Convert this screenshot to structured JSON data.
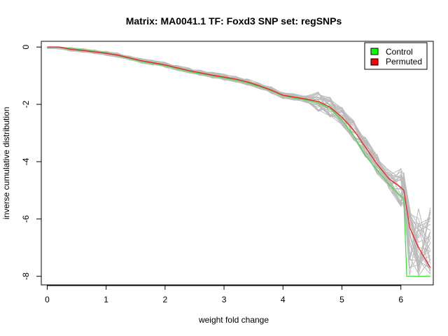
{
  "chart_data": {
    "type": "line",
    "title": "Matrix: MA0041.1 TF: Foxd3 SNP set: regSNPs",
    "xlabel": "weight fold change",
    "ylabel": "inverse cumulative distribution",
    "xlim": [
      -0.1,
      6.55
    ],
    "ylim": [
      -8.3,
      0.2
    ],
    "x_ticks": [
      0,
      1,
      2,
      3,
      4,
      5,
      6
    ],
    "y_ticks": [
      0,
      -2,
      -4,
      -6,
      -8
    ],
    "legend": {
      "position": "top-right",
      "entries": [
        {
          "label": "Control",
          "color": "#00ff00"
        },
        {
          "label": "Permuted",
          "color": "#ff0000"
        }
      ]
    },
    "colors": {
      "control": "#44dd44",
      "permuted": "#ee2222",
      "background_permutations": "#bbbbbb"
    },
    "series": [
      {
        "name": "Control",
        "color": "#44dd44",
        "x": [
          0,
          0.2,
          0.4,
          0.6,
          0.8,
          1.0,
          1.2,
          1.4,
          1.6,
          1.8,
          2.0,
          2.2,
          2.4,
          2.6,
          2.8,
          3.0,
          3.2,
          3.4,
          3.6,
          3.8,
          4.0,
          4.2,
          4.4,
          4.6,
          4.8,
          5.0,
          5.2,
          5.4,
          5.6,
          5.8,
          6.0,
          6.05,
          6.1,
          6.5
        ],
        "y": [
          0,
          0,
          -0.05,
          -0.1,
          -0.15,
          -0.2,
          -0.3,
          -0.4,
          -0.5,
          -0.58,
          -0.65,
          -0.75,
          -0.85,
          -0.93,
          -1.0,
          -1.08,
          -1.15,
          -1.25,
          -1.38,
          -1.52,
          -1.7,
          -1.78,
          -1.85,
          -1.95,
          -2.15,
          -2.55,
          -3.1,
          -3.8,
          -4.3,
          -4.8,
          -5.2,
          -5.3,
          -8.0,
          -8.0
        ]
      },
      {
        "name": "Permuted",
        "color": "#ee2222",
        "x": [
          0,
          0.2,
          0.4,
          0.6,
          0.8,
          1.0,
          1.2,
          1.4,
          1.6,
          1.8,
          2.0,
          2.2,
          2.4,
          2.6,
          2.8,
          3.0,
          3.2,
          3.4,
          3.6,
          3.8,
          4.0,
          4.2,
          4.4,
          4.6,
          4.8,
          5.0,
          5.2,
          5.4,
          5.6,
          5.8,
          6.0,
          6.05,
          6.15,
          6.3,
          6.5
        ],
        "y": [
          0,
          0,
          -0.08,
          -0.12,
          -0.17,
          -0.22,
          -0.28,
          -0.38,
          -0.48,
          -0.55,
          -0.62,
          -0.72,
          -0.82,
          -0.9,
          -0.98,
          -1.05,
          -1.12,
          -1.22,
          -1.35,
          -1.5,
          -1.68,
          -1.75,
          -1.82,
          -1.9,
          -2.1,
          -2.45,
          -2.9,
          -3.5,
          -4.1,
          -4.6,
          -4.9,
          -5.0,
          -6.3,
          -7.0,
          -7.7
        ]
      }
    ]
  }
}
